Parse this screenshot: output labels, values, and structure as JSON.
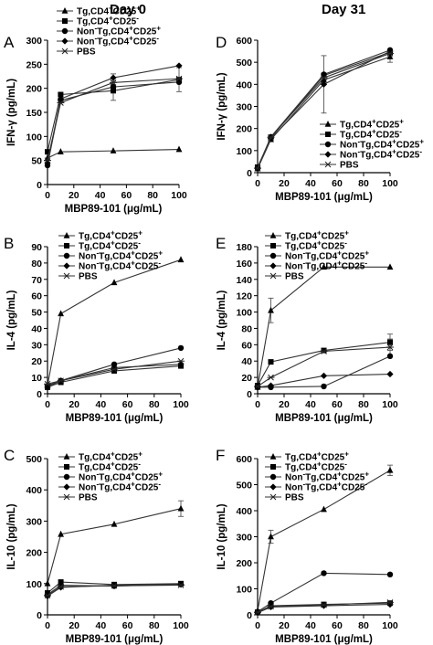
{
  "headers": {
    "left": "Day 0",
    "right": "Day 31"
  },
  "series_names": [
    "Tg,CD4+CD25+",
    "Tg,CD4+CD25-",
    "Non-Tg,CD4+CD25+",
    "Non-Tg,CD4+CD25-",
    "PBS"
  ],
  "chart_data": [
    {
      "type": "line",
      "panel": "A",
      "ylabel": "IFN-γ (pg/mL)",
      "xlabel": "MBP89-101 (μg/mL)",
      "xlim": [
        0,
        100
      ],
      "ylim": [
        0,
        300
      ],
      "xticks": [
        0,
        20,
        40,
        60,
        80,
        100
      ],
      "yticks": [
        0,
        50,
        100,
        150,
        200,
        250,
        300
      ],
      "legend": "top",
      "x": [
        0,
        10,
        50,
        100
      ],
      "series": [
        {
          "name": "Tg,CD4+CD25+",
          "marker": "triangle",
          "values": [
            55,
            68,
            70,
            73
          ]
        },
        {
          "name": "Tg,CD4+CD25-",
          "marker": "square",
          "values": [
            68,
            187,
            195,
            218
          ]
        },
        {
          "name": "Non-Tg,CD4+CD25+",
          "marker": "circle",
          "values": [
            40,
            175,
            203,
            213
          ]
        },
        {
          "name": "Non-Tg,CD4+CD25-",
          "marker": "diamond",
          "values": [
            45,
            178,
            222,
            247
          ]
        },
        {
          "name": "PBS",
          "marker": "star",
          "values": [
            50,
            170,
            212,
            220
          ]
        }
      ],
      "errors": [
        {
          "series": 1,
          "x": 50,
          "err": 20
        },
        {
          "series": 4,
          "x": 50,
          "err": 18
        },
        {
          "series": 1,
          "x": 100,
          "err": 25
        }
      ]
    },
    {
      "type": "line",
      "panel": "D",
      "ylabel": "IFN-γ (pg/mL)",
      "xlabel": "MBP89-101 (μg/mL)",
      "xlim": [
        0,
        100
      ],
      "ylim": [
        0,
        600
      ],
      "xticks": [
        0,
        20,
        40,
        60,
        80,
        100
      ],
      "yticks": [
        0,
        100,
        200,
        300,
        400,
        500,
        600
      ],
      "legend": "bottom-right",
      "x": [
        0,
        10,
        50,
        100
      ],
      "series": [
        {
          "name": "Tg,CD4+CD25+",
          "marker": "triangle",
          "values": [
            18,
            150,
            420,
            525
          ]
        },
        {
          "name": "Tg,CD4+CD25-",
          "marker": "square",
          "values": [
            25,
            158,
            440,
            545
          ]
        },
        {
          "name": "Non-Tg,CD4+CD25+",
          "marker": "circle",
          "values": [
            22,
            162,
            445,
            555
          ]
        },
        {
          "name": "Non-Tg,CD4+CD25-",
          "marker": "diamond",
          "values": [
            20,
            155,
            400,
            550
          ]
        },
        {
          "name": "PBS",
          "marker": "star",
          "values": [
            20,
            160,
            430,
            540
          ]
        }
      ],
      "errors": [
        {
          "series": 3,
          "x": 50,
          "err": 130
        },
        {
          "series": 0,
          "x": 100,
          "err": 25
        }
      ]
    },
    {
      "type": "line",
      "panel": "B",
      "ylabel": "IL-4 (pg/mL)",
      "xlabel": "MBP89-101 (μg/mL)",
      "xlim": [
        0,
        100
      ],
      "ylim": [
        0,
        90
      ],
      "xticks": [
        0,
        20,
        40,
        60,
        80,
        100
      ],
      "yticks": [
        0,
        10,
        20,
        30,
        40,
        50,
        60,
        70,
        80,
        90
      ],
      "legend": "top",
      "x": [
        0,
        10,
        50,
        100
      ],
      "series": [
        {
          "name": "Tg,CD4+CD25+",
          "marker": "triangle",
          "values": [
            5,
            49,
            68,
            82
          ]
        },
        {
          "name": "Tg,CD4+CD25-",
          "marker": "square",
          "values": [
            4,
            7,
            14,
            17
          ]
        },
        {
          "name": "Non-Tg,CD4+CD25+",
          "marker": "circle",
          "values": [
            4,
            8,
            18,
            28
          ]
        },
        {
          "name": "Non-Tg,CD4+CD25-",
          "marker": "diamond",
          "values": [
            5,
            8,
            16,
            18
          ]
        },
        {
          "name": "PBS",
          "marker": "star",
          "values": [
            6,
            8,
            15,
            20
          ]
        }
      ],
      "errors": []
    },
    {
      "type": "line",
      "panel": "E",
      "ylabel": "IL-4 (pg/mL)",
      "xlabel": "MBP89-101 (μg/mL)",
      "xlim": [
        0,
        100
      ],
      "ylim": [
        0,
        180
      ],
      "xticks": [
        0,
        20,
        40,
        60,
        80,
        100
      ],
      "yticks": [
        0,
        20,
        40,
        60,
        80,
        100,
        120,
        140,
        160,
        180
      ],
      "legend": "top",
      "x": [
        0,
        10,
        50,
        100
      ],
      "series": [
        {
          "name": "Tg,CD4+CD25+",
          "marker": "triangle",
          "values": [
            8,
            102,
            155,
            155
          ]
        },
        {
          "name": "Tg,CD4+CD25-",
          "marker": "square",
          "values": [
            10,
            39,
            53,
            63
          ]
        },
        {
          "name": "Non-Tg,CD4+CD25+",
          "marker": "circle",
          "values": [
            8,
            8,
            9,
            46
          ]
        },
        {
          "name": "Non-Tg,CD4+CD25-",
          "marker": "diamond",
          "values": [
            8,
            10,
            22,
            24
          ]
        },
        {
          "name": "PBS",
          "marker": "star",
          "values": [
            9,
            20,
            52,
            57
          ]
        }
      ],
      "errors": [
        {
          "series": 0,
          "x": 10,
          "err": 15
        },
        {
          "series": 1,
          "x": 100,
          "err": 10
        },
        {
          "series": 4,
          "x": 100,
          "err": 10
        }
      ]
    },
    {
      "type": "line",
      "panel": "C",
      "ylabel": "IL-10 (pg/mL)",
      "xlabel": "MBP89-101 (μg/mL)",
      "xlim": [
        0,
        100
      ],
      "ylim": [
        0,
        500
      ],
      "xticks": [
        0,
        20,
        40,
        60,
        80,
        100
      ],
      "yticks": [
        0,
        100,
        200,
        300,
        400,
        500
      ],
      "legend": "top",
      "x": [
        0,
        10,
        50,
        100
      ],
      "series": [
        {
          "name": "Tg,CD4+CD25+",
          "marker": "triangle",
          "values": [
            100,
            258,
            290,
            340
          ]
        },
        {
          "name": "Tg,CD4+CD25-",
          "marker": "square",
          "values": [
            70,
            105,
            97,
            100
          ]
        },
        {
          "name": "Non-Tg,CD4+CD25+",
          "marker": "circle",
          "values": [
            65,
            95,
            92,
            98
          ]
        },
        {
          "name": "Non-Tg,CD4+CD25-",
          "marker": "diamond",
          "values": [
            60,
            88,
            95,
            97
          ]
        },
        {
          "name": "PBS",
          "marker": "star",
          "values": [
            62,
            90,
            93,
            95
          ]
        }
      ],
      "errors": [
        {
          "series": 0,
          "x": 100,
          "err": 25
        }
      ]
    },
    {
      "type": "line",
      "panel": "F",
      "ylabel": "IL-10 (pg/mL)",
      "xlabel": "MBP89-101 (μg/mL)",
      "xlim": [
        0,
        100
      ],
      "ylim": [
        0,
        600
      ],
      "xticks": [
        0,
        20,
        40,
        60,
        80,
        100
      ],
      "yticks": [
        0,
        100,
        200,
        300,
        400,
        500,
        600
      ],
      "legend": "top",
      "x": [
        0,
        10,
        50,
        100
      ],
      "series": [
        {
          "name": "Tg,CD4+CD25+",
          "marker": "triangle",
          "values": [
            15,
            300,
            405,
            555
          ]
        },
        {
          "name": "Tg,CD4+CD25-",
          "marker": "square",
          "values": [
            10,
            35,
            40,
            45
          ]
        },
        {
          "name": "Non-Tg,CD4+CD25+",
          "marker": "circle",
          "values": [
            12,
            45,
            160,
            155
          ]
        },
        {
          "name": "Non-Tg,CD4+CD25-",
          "marker": "diamond",
          "values": [
            8,
            30,
            35,
            40
          ]
        },
        {
          "name": "PBS",
          "marker": "star",
          "values": [
            10,
            32,
            38,
            48
          ]
        }
      ],
      "errors": [
        {
          "series": 0,
          "x": 10,
          "err": 25
        },
        {
          "series": 0,
          "x": 100,
          "err": 20
        }
      ]
    }
  ]
}
